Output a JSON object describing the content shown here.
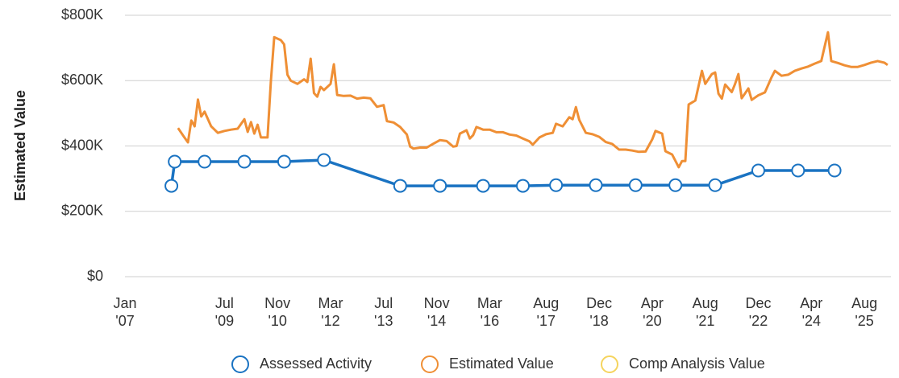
{
  "chart_data": {
    "type": "line",
    "y_label": "Estimated Value",
    "ylim": [
      0,
      800000
    ],
    "yticks": [
      {
        "value": 0,
        "label": "$0"
      },
      {
        "value": 200000,
        "label": "$200K"
      },
      {
        "value": 400000,
        "label": "$400K"
      },
      {
        "value": 600000,
        "label": "$600K"
      },
      {
        "value": 800000,
        "label": "$800K"
      }
    ],
    "xlim": [
      "2007-01",
      "2026-04"
    ],
    "xticks": [
      {
        "value": "2007-01",
        "label": "Jan '07"
      },
      {
        "value": "2009-07",
        "label": "Jul '09"
      },
      {
        "value": "2010-11",
        "label": "Nov '10"
      },
      {
        "value": "2012-03",
        "label": "Mar '12"
      },
      {
        "value": "2013-07",
        "label": "Jul '13"
      },
      {
        "value": "2014-11",
        "label": "Nov '14"
      },
      {
        "value": "2016-03",
        "label": "Mar '16"
      },
      {
        "value": "2017-08",
        "label": "Aug '17"
      },
      {
        "value": "2018-12",
        "label": "Dec '18"
      },
      {
        "value": "2020-04",
        "label": "Apr '20"
      },
      {
        "value": "2021-08",
        "label": "Aug '21"
      },
      {
        "value": "2022-12",
        "label": "Dec '22"
      },
      {
        "value": "2024-04",
        "label": "Apr '24"
      },
      {
        "value": "2025-08",
        "label": "Aug '25"
      }
    ],
    "grid": true,
    "legend": "bottom",
    "series": [
      {
        "name": "Assessed Activity",
        "color": "#1a73c2",
        "markers": true,
        "x": [
          "2008-03",
          "2008-04",
          "2009-01",
          "2010-01",
          "2011-01",
          "2012-01",
          "2013-12",
          "2014-12",
          "2016-01",
          "2017-01",
          "2017-11",
          "2018-11",
          "2019-11",
          "2020-11",
          "2021-11",
          "2022-12",
          "2023-12",
          "2024-11"
        ],
        "values": [
          278000,
          352000,
          352000,
          352000,
          352000,
          357000,
          278000,
          278000,
          278000,
          278000,
          280000,
          280000,
          280000,
          280000,
          280000,
          325000,
          325000,
          325000
        ]
      },
      {
        "name": "Estimated Value",
        "color": "#ef8f35",
        "markers": false,
        "x": [
          "2008-05",
          "2008-07",
          "2008-08",
          "2008-09",
          "2008-10",
          "2008-11",
          "2008-12",
          "2009-01",
          "2009-03",
          "2009-05",
          "2009-07",
          "2009-09",
          "2009-11",
          "2010-01",
          "2010-02",
          "2010-03",
          "2010-04",
          "2010-05",
          "2010-06",
          "2010-08",
          "2010-09",
          "2010-10",
          "2010-12",
          "2011-01",
          "2011-02",
          "2011-03",
          "2011-05",
          "2011-07",
          "2011-08",
          "2011-09",
          "2011-10",
          "2011-11",
          "2011-12",
          "2012-01",
          "2012-03",
          "2012-04",
          "2012-05",
          "2012-07",
          "2012-09",
          "2012-11",
          "2013-01",
          "2013-03",
          "2013-05",
          "2013-07",
          "2013-08",
          "2013-10",
          "2013-12",
          "2014-02",
          "2014-03",
          "2014-04",
          "2014-06",
          "2014-08",
          "2014-10",
          "2014-12",
          "2015-02",
          "2015-04",
          "2015-05",
          "2015-06",
          "2015-08",
          "2015-09",
          "2015-10",
          "2015-11",
          "2016-01",
          "2016-03",
          "2016-05",
          "2016-07",
          "2016-09",
          "2016-11",
          "2017-01",
          "2017-03",
          "2017-04",
          "2017-06",
          "2017-08",
          "2017-10",
          "2017-11",
          "2018-01",
          "2018-03",
          "2018-04",
          "2018-05",
          "2018-06",
          "2018-08",
          "2018-10",
          "2018-12",
          "2019-02",
          "2019-04",
          "2019-06",
          "2019-08",
          "2019-10",
          "2019-12",
          "2020-02",
          "2020-04",
          "2020-05",
          "2020-07",
          "2020-08",
          "2020-10",
          "2020-12",
          "2021-01",
          "2021-02",
          "2021-03",
          "2021-05",
          "2021-07",
          "2021-08",
          "2021-10",
          "2021-11",
          "2021-12",
          "2022-01",
          "2022-02",
          "2022-04",
          "2022-05",
          "2022-06",
          "2022-07",
          "2022-09",
          "2022-10",
          "2022-12",
          "2023-02",
          "2023-04",
          "2023-05",
          "2023-07",
          "2023-09",
          "2023-11",
          "2024-01",
          "2024-03",
          "2024-05",
          "2024-07",
          "2024-09",
          "2024-10",
          "2024-12",
          "2025-02",
          "2025-04",
          "2025-06",
          "2025-08",
          "2025-10",
          "2025-12",
          "2026-02",
          "2026-03"
        ],
        "values": [
          455000,
          425000,
          411000,
          478000,
          460000,
          542000,
          490000,
          505000,
          460000,
          440000,
          446000,
          450000,
          453000,
          482000,
          443000,
          473000,
          438000,
          465000,
          426000,
          426000,
          600000,
          733000,
          724000,
          711000,
          618000,
          600000,
          590000,
          604000,
          596000,
          667000,
          562000,
          551000,
          581000,
          571000,
          590000,
          650000,
          556000,
          553000,
          554000,
          545000,
          548000,
          546000,
          520000,
          525000,
          476000,
          472000,
          458000,
          435000,
          398000,
          392000,
          395000,
          395000,
          407000,
          418000,
          415000,
          398000,
          400000,
          438000,
          448000,
          423000,
          433000,
          458000,
          450000,
          450000,
          442000,
          442000,
          435000,
          432000,
          423000,
          414000,
          404000,
          426000,
          436000,
          440000,
          468000,
          460000,
          488000,
          482000,
          519000,
          480000,
          440000,
          436000,
          428000,
          412000,
          406000,
          389000,
          389000,
          386000,
          382000,
          383000,
          420000,
          446000,
          438000,
          384000,
          374000,
          335000,
          354000,
          354000,
          527000,
          539000,
          630000,
          590000,
          620000,
          625000,
          560000,
          545000,
          588000,
          565000,
          590000,
          620000,
          546000,
          576000,
          541000,
          555000,
          564000,
          610000,
          630000,
          615000,
          618000,
          630000,
          637000,
          643000,
          652000,
          660000,
          748000,
          660000,
          654000,
          647000,
          642000,
          642000,
          648000,
          655000,
          660000,
          655000,
          648000
        ]
      },
      {
        "name": "Comp Analysis Value",
        "color": "#f5d45e",
        "markers": false,
        "x": [],
        "values": []
      }
    ]
  }
}
